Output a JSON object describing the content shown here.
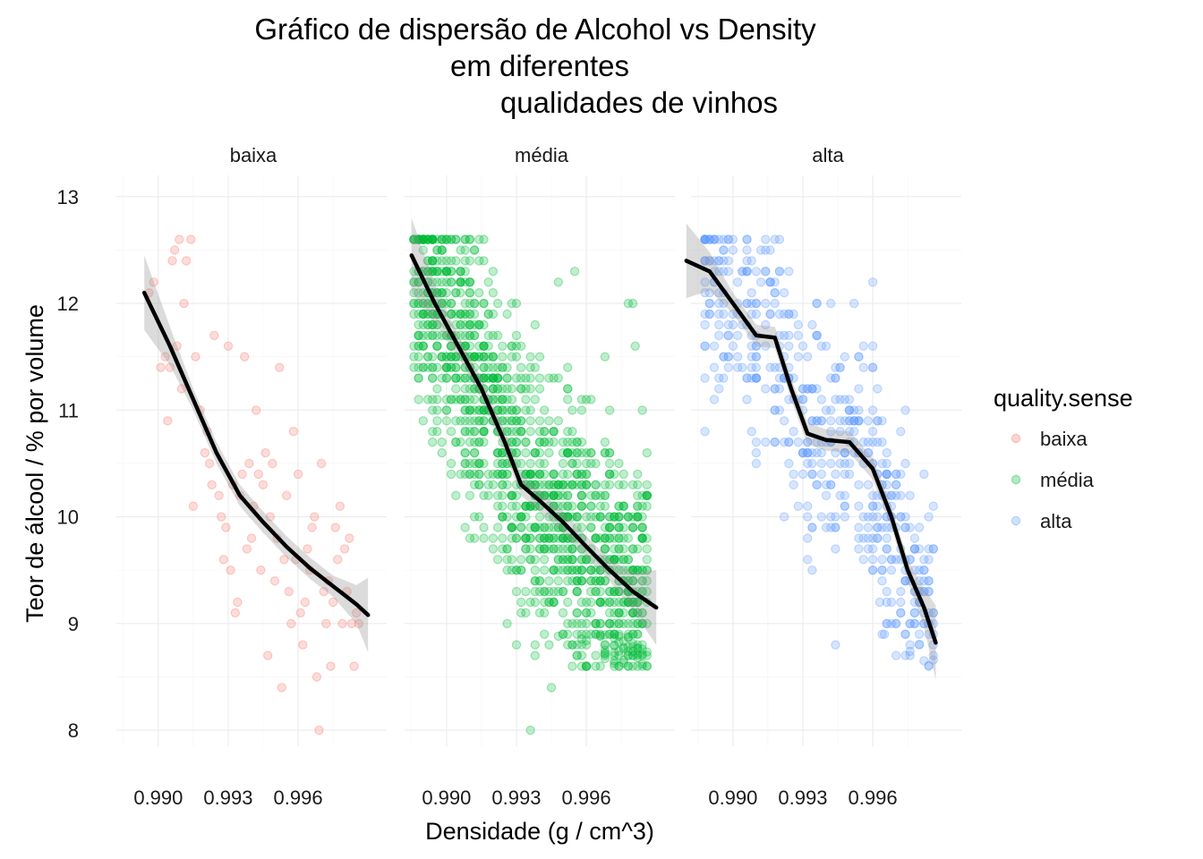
{
  "chart_data": {
    "type": "scatter",
    "title_lines": [
      "Gráfico de dispersão de Alcohol vs Density",
      "em diferentes",
      "qualidades de vinhos"
    ],
    "xlabel": "Densidade (g / cm^3)",
    "ylabel": "Teor de álcool / % por volume",
    "xlim": [
      0.9882,
      0.9998
    ],
    "ylim": [
      7.85,
      13.2
    ],
    "x_ticks": [
      {
        "value": 0.99,
        "label": "0.990"
      },
      {
        "value": 0.993,
        "label": "0.993"
      },
      {
        "value": 0.996,
        "label": "0.996"
      }
    ],
    "y_ticks": [
      {
        "value": 8,
        "label": "8"
      },
      {
        "value": 9,
        "label": "9"
      },
      {
        "value": 10,
        "label": "10"
      },
      {
        "value": 11,
        "label": "11"
      },
      {
        "value": 12,
        "label": "12"
      },
      {
        "value": 13,
        "label": "13"
      }
    ],
    "grid": true,
    "point_opacity": 0.25,
    "facet_variable": "quality.sense",
    "legend": {
      "title": "quality.sense",
      "position": "right"
    },
    "series": [
      {
        "name": "baixa",
        "color": "#F8766D",
        "x_range": [
          0.9895,
          0.9986
        ],
        "trend": [
          [
            0.9894,
            12.1
          ],
          [
            0.9905,
            11.6
          ],
          [
            0.9915,
            11.1
          ],
          [
            0.9925,
            10.6
          ],
          [
            0.9935,
            10.2
          ],
          [
            0.9945,
            9.95
          ],
          [
            0.9955,
            9.72
          ],
          [
            0.9965,
            9.52
          ],
          [
            0.9975,
            9.35
          ],
          [
            0.9985,
            9.18
          ],
          [
            0.999,
            9.08
          ]
        ],
        "points": [
          [
            0.9896,
            12.1
          ],
          [
            0.9898,
            12.2
          ],
          [
            0.9901,
            11.4
          ],
          [
            0.9903,
            11.5
          ],
          [
            0.9904,
            10.9
          ],
          [
            0.9905,
            11.4
          ],
          [
            0.9906,
            12.4
          ],
          [
            0.9907,
            12.5
          ],
          [
            0.9908,
            11.6
          ],
          [
            0.9909,
            12.6
          ],
          [
            0.991,
            11.2
          ],
          [
            0.9911,
            12.0
          ],
          [
            0.9912,
            12.4
          ],
          [
            0.9914,
            12.6
          ],
          [
            0.9915,
            10.1
          ],
          [
            0.9916,
            11.5
          ],
          [
            0.9918,
            11.0
          ],
          [
            0.992,
            10.6
          ],
          [
            0.9921,
            10.8
          ],
          [
            0.9922,
            10.5
          ],
          [
            0.9923,
            10.3
          ],
          [
            0.9924,
            11.7
          ],
          [
            0.9926,
            10.2
          ],
          [
            0.9927,
            10.0
          ],
          [
            0.9928,
            9.6
          ],
          [
            0.9929,
            9.9
          ],
          [
            0.993,
            11.6
          ],
          [
            0.9931,
            9.5
          ],
          [
            0.9932,
            10.3
          ],
          [
            0.9933,
            9.1
          ],
          [
            0.9934,
            9.2
          ],
          [
            0.9935,
            10.2
          ],
          [
            0.9936,
            10.4
          ],
          [
            0.9937,
            11.5
          ],
          [
            0.9938,
            9.7
          ],
          [
            0.9939,
            10.5
          ],
          [
            0.994,
            9.8
          ],
          [
            0.9941,
            10.1
          ],
          [
            0.9942,
            11.0
          ],
          [
            0.9943,
            10.4
          ],
          [
            0.9944,
            9.5
          ],
          [
            0.9945,
            10.3
          ],
          [
            0.9946,
            10.6
          ],
          [
            0.9947,
            8.7
          ],
          [
            0.9948,
            10.0
          ],
          [
            0.9949,
            10.5
          ],
          [
            0.995,
            9.4
          ],
          [
            0.9951,
            9.8
          ],
          [
            0.9952,
            11.4
          ],
          [
            0.9953,
            8.4
          ],
          [
            0.9954,
            9.6
          ],
          [
            0.9955,
            10.2
          ],
          [
            0.9956,
            9.3
          ],
          [
            0.9957,
            9.0
          ],
          [
            0.9958,
            10.8
          ],
          [
            0.9959,
            9.6
          ],
          [
            0.996,
            10.4
          ],
          [
            0.9961,
            9.1
          ],
          [
            0.9962,
            8.8
          ],
          [
            0.9963,
            9.2
          ],
          [
            0.9964,
            9.7
          ],
          [
            0.9965,
            9.5
          ],
          [
            0.9966,
            9.9
          ],
          [
            0.9967,
            10.0
          ],
          [
            0.9968,
            8.5
          ],
          [
            0.9969,
            8.0
          ],
          [
            0.997,
            10.5
          ],
          [
            0.9971,
            9.3
          ],
          [
            0.9972,
            9.0
          ],
          [
            0.9973,
            9.4
          ],
          [
            0.9974,
            8.6
          ],
          [
            0.9975,
            9.2
          ],
          [
            0.9976,
            9.9
          ],
          [
            0.9977,
            9.6
          ],
          [
            0.9978,
            10.1
          ],
          [
            0.9979,
            9.0
          ],
          [
            0.998,
            9.7
          ],
          [
            0.9981,
            9.3
          ],
          [
            0.9982,
            9.8
          ],
          [
            0.9983,
            9.0
          ],
          [
            0.9984,
            8.6
          ],
          [
            0.9985,
            9.1
          ],
          [
            0.9986,
            9.0
          ]
        ]
      },
      {
        "name": "média",
        "color": "#00BA38",
        "x_range": [
          0.9886,
          0.9987
        ],
        "trend": [
          [
            0.9885,
            12.45
          ],
          [
            0.9895,
            12.0
          ],
          [
            0.9905,
            11.6
          ],
          [
            0.9915,
            11.2
          ],
          [
            0.9925,
            10.7
          ],
          [
            0.9932,
            10.3
          ],
          [
            0.994,
            10.15
          ],
          [
            0.995,
            9.95
          ],
          [
            0.996,
            9.72
          ],
          [
            0.997,
            9.5
          ],
          [
            0.998,
            9.3
          ],
          [
            0.999,
            9.15
          ]
        ],
        "points": [
          [
            0.9936,
            8.0
          ],
          [
            0.9945,
            8.4
          ],
          [
            0.9955,
            12.3
          ],
          [
            0.9948,
            12.2
          ],
          [
            0.998,
            12.0
          ],
          [
            0.9981,
            11.6
          ],
          [
            0.9968,
            11.5
          ],
          [
            0.996,
            11.1
          ],
          [
            0.9978,
            12.0
          ]
        ]
      },
      {
        "name": "alta",
        "color": "#619CFF",
        "x_range": [
          0.9887,
          0.9987
        ],
        "trend": [
          [
            0.988,
            12.4
          ],
          [
            0.989,
            12.3
          ],
          [
            0.99,
            12.0
          ],
          [
            0.991,
            11.7
          ],
          [
            0.9918,
            11.68
          ],
          [
            0.9925,
            11.2
          ],
          [
            0.9932,
            10.78
          ],
          [
            0.994,
            10.72
          ],
          [
            0.995,
            10.7
          ],
          [
            0.996,
            10.45
          ],
          [
            0.9968,
            10.0
          ],
          [
            0.9975,
            9.5
          ],
          [
            0.9982,
            9.15
          ],
          [
            0.9987,
            8.82
          ]
        ],
        "points": [
          [
            0.9948,
            10.1
          ],
          [
            0.9952,
            12.0
          ],
          [
            0.996,
            12.2
          ],
          [
            0.9963,
            9.2
          ],
          [
            0.9944,
            8.8
          ],
          [
            0.9965,
            8.9
          ],
          [
            0.9968,
            9.0
          ],
          [
            0.997,
            8.7
          ],
          [
            0.9976,
            9.0
          ],
          [
            0.9972,
            9.3
          ],
          [
            0.9978,
            9.1
          ]
        ]
      }
    ]
  }
}
